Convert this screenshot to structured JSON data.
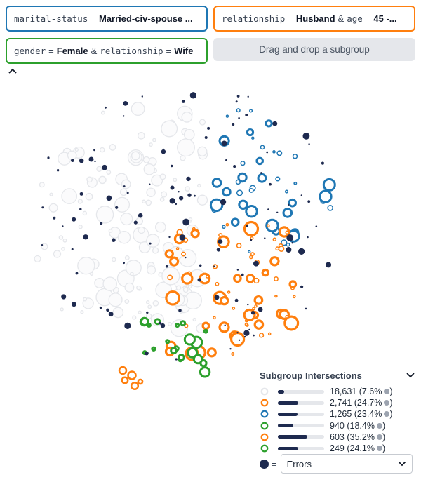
{
  "chips": [
    {
      "feature": "marital-status",
      "op": "=",
      "value": "Married-civ-spouse ...",
      "color": "#1f77b4"
    },
    {
      "feature": "relationship",
      "op": "=",
      "value": "Husband",
      "joiner": "&",
      "feature2": "age",
      "op2": "=",
      "value2": "45 -...",
      "color": "#ff7f0e"
    },
    {
      "feature": "gender",
      "op": "=",
      "value": "Female",
      "joiner": "&",
      "feature2": "relationship",
      "op2": "=",
      "value2": "Wife",
      "color": "#2ca02c"
    }
  ],
  "dropzone": {
    "label": "Drag and drop a subgroup"
  },
  "icons": {
    "collapse": "chevron-up-icon",
    "legend_toggle": "chevron-down-icon",
    "select": "chevron-down-icon"
  },
  "legend": {
    "title": "Subgroup Intersections",
    "rows": [
      {
        "count": "18,631 (7.6%",
        "close": ")",
        "color": "#9ca3af",
        "ring": "#e5e7eb",
        "fill": 0.076
      },
      {
        "count": "2,741 (24.7%",
        "close": ")",
        "color": "#ff7f0e",
        "ring": "#ff7f0e",
        "fill": 0.247
      },
      {
        "count": "1,265 (23.4%",
        "close": ")",
        "color": "#1f77b4",
        "ring": "#1f77b4",
        "fill": 0.234
      },
      {
        "count": "940 (18.4%",
        "close": ")",
        "color": "#2ca02c",
        "ring": "#2ca02c",
        "fill": 0.184
      },
      {
        "count": "603 (35.2%",
        "close": ")",
        "color": "#ff7f0e",
        "ring": "#ff7f0e",
        "fill": 0.352
      },
      {
        "count": "249 (24.1%",
        "close": ")",
        "color": "#2ca02c",
        "ring": "#2ca02c",
        "fill": 0.241
      }
    ]
  },
  "color_by": {
    "equals": "=",
    "selected": "Errors"
  },
  "colors": {
    "error_dot": "#1e2a4f",
    "orange": "#ff7f0e",
    "blue": "#1f77b4",
    "green": "#2ca02c",
    "gray_ring": "#e5e7eb"
  }
}
